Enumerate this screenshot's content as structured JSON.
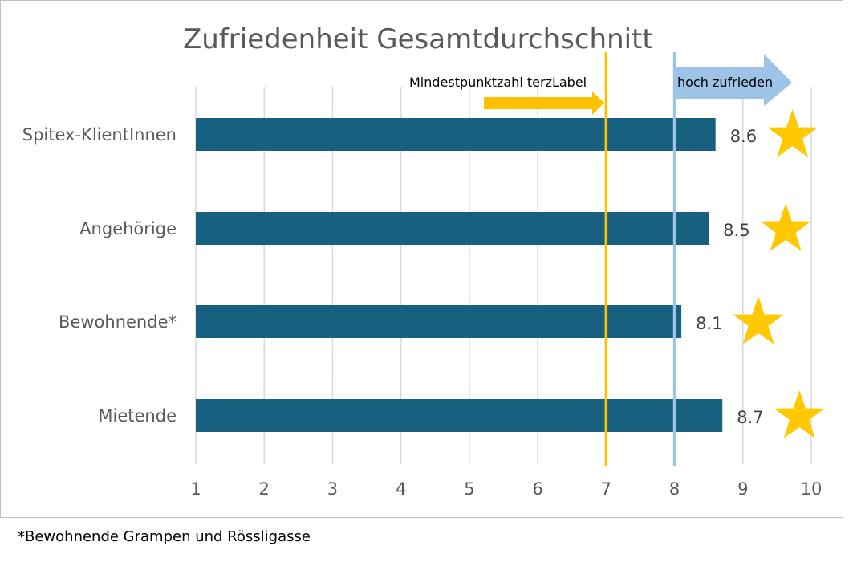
{
  "chart_data": {
    "type": "bar",
    "orientation": "horizontal",
    "title": "Zufriedenheit Gesamtdurchschnitt",
    "categories": [
      "Spitex-KlientInnen",
      "Angehörige",
      "Bewohnende*",
      "Mietende"
    ],
    "values": [
      8.6,
      8.5,
      8.1,
      8.7
    ],
    "data_labels": [
      "8.6",
      "8.5",
      "8.1",
      "8.7"
    ],
    "xlim": [
      1,
      10
    ],
    "x_ticks": [
      "1",
      "2",
      "3",
      "4",
      "5",
      "6",
      "7",
      "8",
      "9",
      "10"
    ],
    "grid": "vertical",
    "bar_color": "#17607f",
    "markers": "star",
    "marker_color": "#ffc800",
    "reference_lines": [
      {
        "value": 7,
        "color": "#ffc000",
        "label": "Mindestpunktzahl terzLabel"
      },
      {
        "value": 8,
        "color": "#9dc3e6",
        "label": "hoch zufrieden"
      }
    ],
    "footnote": "*Bewohnende Grampen und Rössligasse"
  }
}
